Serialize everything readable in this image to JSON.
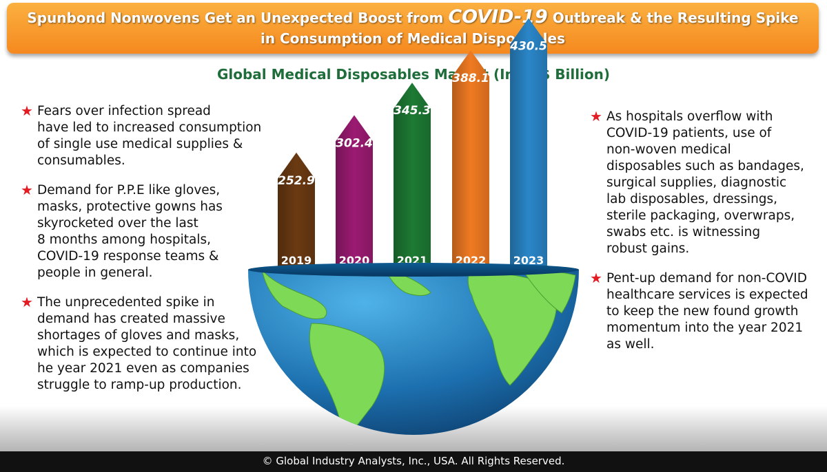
{
  "header": {
    "line1_a": "Spunbond Nonwovens Get an Unexpected Boost from ",
    "line1_highlight": "COVID-19",
    "line1_b": " Outbreak & the Resulting Spike",
    "line2": "in Consumption of Medical Disposables"
  },
  "left_bullets": [
    {
      "lines": [
        "Fears over infection spread",
        "have led to increased consumption",
        "of single use medical supplies &",
        "consumables."
      ]
    },
    {
      "lines": [
        "Demand for P.P.E like gloves,",
        "masks, protective gowns has",
        "skyrocketed over the last",
        "8 months among hospitals,",
        "COVID-19 response teams &",
        "people in general."
      ]
    },
    {
      "lines": [
        "The unprecedented spike in",
        "demand has created massive",
        "shortages of gloves and masks,",
        "which is expected to continue into",
        "he year 2021 even as companies",
        "struggle to ramp-up production."
      ]
    }
  ],
  "right_bullets": [
    {
      "lines": [
        "As hospitals overflow with",
        "COVID-19 patients, use of",
        "non-woven medical",
        "disposables such as bandages,",
        "surgical supplies, diagnostic",
        "lab disposables, dressings,",
        "sterile packaging, overwraps,",
        "swabs etc. is witnessing",
        "robust gains."
      ]
    },
    {
      "lines": [
        "Pent-up demand for non-COVID",
        "healthcare services is expected",
        "to keep the new found growth",
        "momentum into the year 2021",
        "as well."
      ]
    }
  ],
  "chart_data": {
    "type": "bar",
    "title": "Global Medical Disposables Market (In US$ Billion)",
    "categories": [
      "2019",
      "2020",
      "2021",
      "2022",
      "2023"
    ],
    "values": [
      252.9,
      302.4,
      345.3,
      388.1,
      430.5
    ],
    "value_labels": [
      "252.9",
      "302.4",
      "345.3",
      "388.1",
      "430.5"
    ],
    "colors": [
      "#6b3a12",
      "#9b1b72",
      "#1d7a34",
      "#f07a22",
      "#2a86c8"
    ],
    "legend": "none",
    "grid": false
  },
  "footer": "© Global Industry Analysts, Inc., USA. All Rights Reserved."
}
